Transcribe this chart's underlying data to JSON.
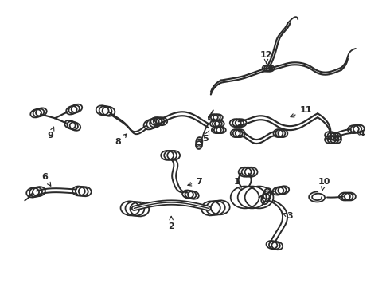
{
  "background_color": "#ffffff",
  "line_color": "#2a2a2a",
  "lw": 1.3,
  "figsize": [
    4.9,
    3.6
  ],
  "dpi": 100
}
